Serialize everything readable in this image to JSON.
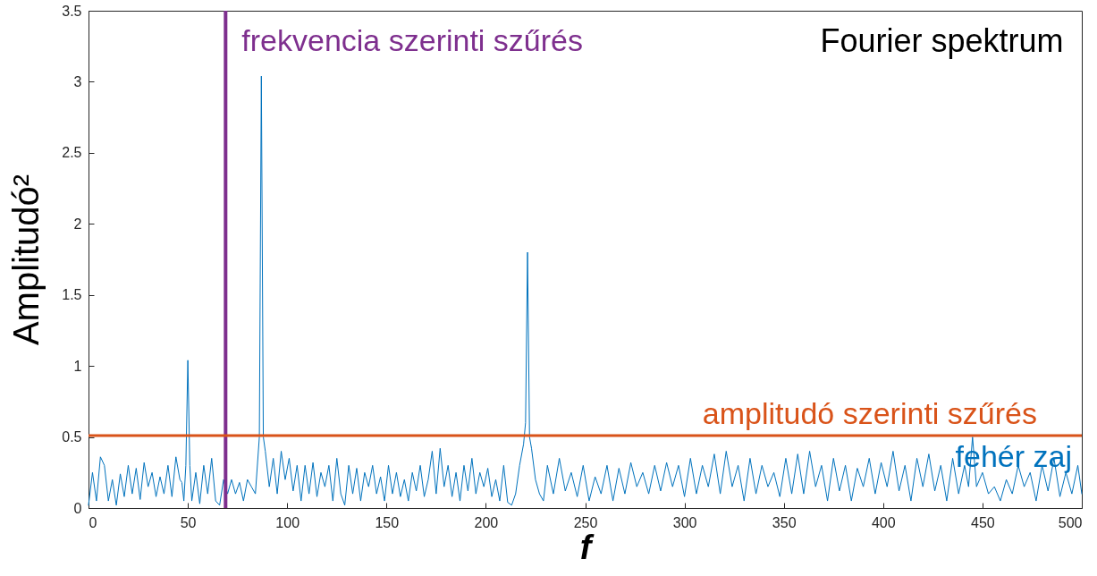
{
  "chart_data": {
    "type": "line",
    "title": "Fourier spektrum",
    "xlabel": "f",
    "ylabel": "Amplitudó²",
    "xlim": [
      0,
      500
    ],
    "xticks": [
      0,
      50,
      100,
      150,
      200,
      250,
      300,
      350,
      400,
      450,
      500
    ],
    "ylim": [
      0,
      3.5
    ],
    "yticks": [
      0,
      0.5,
      1,
      1.5,
      2,
      2.5,
      3,
      3.5
    ],
    "grid": false,
    "marker": "none",
    "line_style": "solid",
    "x": [
      0,
      2,
      4,
      6,
      8,
      10,
      12,
      14,
      16,
      18,
      20,
      22,
      24,
      26,
      28,
      30,
      32,
      34,
      36,
      38,
      40,
      42,
      44,
      46,
      47,
      48,
      49,
      50,
      51,
      52,
      54,
      56,
      58,
      60,
      62,
      64,
      66,
      68,
      70,
      72,
      74,
      76,
      78,
      80,
      82,
      84,
      86,
      87,
      88,
      89,
      91,
      93,
      95,
      97,
      99,
      101,
      103,
      105,
      107,
      109,
      111,
      113,
      115,
      117,
      119,
      121,
      123,
      125,
      127,
      129,
      131,
      133,
      135,
      137,
      139,
      141,
      143,
      145,
      147,
      149,
      151,
      153,
      155,
      157,
      159,
      161,
      163,
      165,
      167,
      169,
      171,
      173,
      175,
      177,
      179,
      181,
      183,
      185,
      187,
      189,
      191,
      193,
      195,
      197,
      199,
      201,
      203,
      205,
      207,
      209,
      211,
      213,
      215,
      217,
      219,
      220,
      221,
      222,
      223,
      225,
      227,
      229,
      231,
      234,
      237,
      240,
      243,
      246,
      249,
      252,
      255,
      258,
      261,
      264,
      267,
      270,
      273,
      276,
      279,
      282,
      285,
      288,
      291,
      294,
      297,
      300,
      303,
      306,
      309,
      312,
      315,
      318,
      321,
      324,
      327,
      330,
      333,
      336,
      339,
      342,
      345,
      348,
      351,
      354,
      357,
      360,
      363,
      366,
      369,
      372,
      375,
      378,
      381,
      384,
      387,
      390,
      393,
      396,
      399,
      402,
      405,
      408,
      411,
      414,
      417,
      420,
      423,
      426,
      429,
      432,
      435,
      438,
      441,
      443,
      445,
      447,
      450,
      453,
      456,
      459,
      462,
      465,
      468,
      471,
      474,
      477,
      480,
      483,
      486,
      489,
      492,
      495,
      498,
      500
    ],
    "series": [
      {
        "color": "#0072bd",
        "values": [
          0.02,
          0.25,
          0.05,
          0.36,
          0.3,
          0.05,
          0.2,
          0.02,
          0.24,
          0.08,
          0.3,
          0.1,
          0.28,
          0.06,
          0.32,
          0.15,
          0.25,
          0.08,
          0.22,
          0.1,
          0.3,
          0.08,
          0.36,
          0.2,
          0.18,
          0.05,
          0.3,
          1.04,
          0.3,
          0.05,
          0.25,
          0.03,
          0.3,
          0.1,
          0.35,
          0.05,
          0.02,
          0.2,
          0.1,
          0.2,
          0.1,
          0.18,
          0.05,
          0.2,
          0.15,
          0.1,
          0.5,
          3.04,
          0.5,
          0.4,
          0.15,
          0.35,
          0.1,
          0.4,
          0.2,
          0.35,
          0.12,
          0.3,
          0.05,
          0.3,
          0.1,
          0.32,
          0.08,
          0.25,
          0.15,
          0.3,
          0.05,
          0.35,
          0.1,
          0.02,
          0.3,
          0.1,
          0.28,
          0.05,
          0.25,
          0.15,
          0.3,
          0.1,
          0.22,
          0.05,
          0.3,
          0.1,
          0.25,
          0.08,
          0.2,
          0.05,
          0.25,
          0.12,
          0.3,
          0.08,
          0.2,
          0.4,
          0.1,
          0.42,
          0.15,
          0.3,
          0.08,
          0.25,
          0.05,
          0.3,
          0.12,
          0.35,
          0.1,
          0.25,
          0.15,
          0.28,
          0.08,
          0.2,
          0.05,
          0.3,
          0.04,
          0.02,
          0.1,
          0.3,
          0.45,
          0.6,
          1.8,
          0.5,
          0.42,
          0.2,
          0.1,
          0.05,
          0.3,
          0.1,
          0.35,
          0.12,
          0.25,
          0.08,
          0.3,
          0.05,
          0.22,
          0.1,
          0.3,
          0.05,
          0.28,
          0.1,
          0.32,
          0.15,
          0.25,
          0.1,
          0.3,
          0.12,
          0.32,
          0.15,
          0.3,
          0.08,
          0.35,
          0.1,
          0.3,
          0.15,
          0.38,
          0.1,
          0.4,
          0.15,
          0.3,
          0.05,
          0.35,
          0.1,
          0.3,
          0.15,
          0.25,
          0.08,
          0.35,
          0.1,
          0.38,
          0.1,
          0.4,
          0.15,
          0.3,
          0.05,
          0.35,
          0.12,
          0.3,
          0.05,
          0.28,
          0.15,
          0.35,
          0.1,
          0.32,
          0.15,
          0.4,
          0.12,
          0.3,
          0.05,
          0.35,
          0.15,
          0.38,
          0.12,
          0.3,
          0.05,
          0.35,
          0.1,
          0.3,
          0.15,
          0.5,
          0.15,
          0.25,
          0.1,
          0.15,
          0.05,
          0.2,
          0.1,
          0.3,
          0.15,
          0.25,
          0.05,
          0.3,
          0.12,
          0.35,
          0.08,
          0.25,
          0.1,
          0.3,
          0.1
        ]
      }
    ],
    "ref_lines": [
      {
        "axis": "x",
        "value": 69,
        "label": "frekvencia szerinti szűrés",
        "color": "#7e2f8e"
      },
      {
        "axis": "y",
        "value": 0.51,
        "label": "amplitudó szerinti szűrés",
        "color": "#d95319"
      }
    ],
    "annotations": [
      "fehér zaj"
    ]
  }
}
